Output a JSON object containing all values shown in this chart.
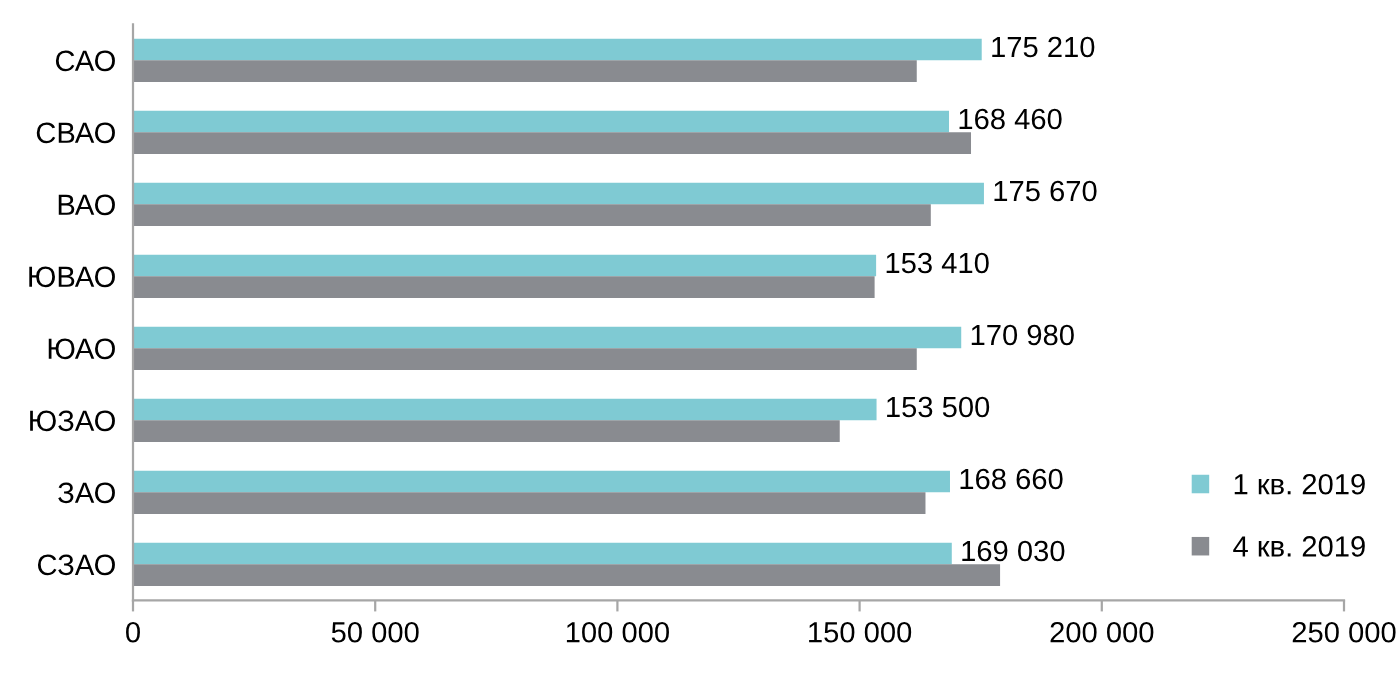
{
  "chart_data": {
    "type": "bar",
    "orientation": "horizontal",
    "categories": [
      "САО",
      "СВАО",
      "ВАО",
      "ЮВАО",
      "ЮАО",
      "ЮЗАО",
      "ЗАО",
      "СЗАО"
    ],
    "series": [
      {
        "name": "1 кв. 2019",
        "color": "#7fcad3",
        "values": [
          175210,
          168460,
          175670,
          153410,
          170980,
          153500,
          168660,
          169030
        ],
        "value_labels": [
          "175 210",
          "168 460",
          "175 670",
          "153 410",
          "170 980",
          "153 500",
          "168 660",
          "169 030"
        ]
      },
      {
        "name": "4 кв. 2019",
        "color": "#898b90",
        "values": [
          161800,
          173000,
          164700,
          153100,
          161800,
          145900,
          163600,
          179000
        ]
      }
    ],
    "xlim": [
      0,
      250000
    ],
    "xticks": [
      {
        "value": 0,
        "label": "0"
      },
      {
        "value": 50000,
        "label": "50 000"
      },
      {
        "value": 100000,
        "label": "100 000"
      },
      {
        "value": 150000,
        "label": "150 000"
      },
      {
        "value": 200000,
        "label": "200 000"
      },
      {
        "value": 250000,
        "label": "250 000"
      }
    ],
    "grid": false,
    "legend": "bottom right"
  }
}
